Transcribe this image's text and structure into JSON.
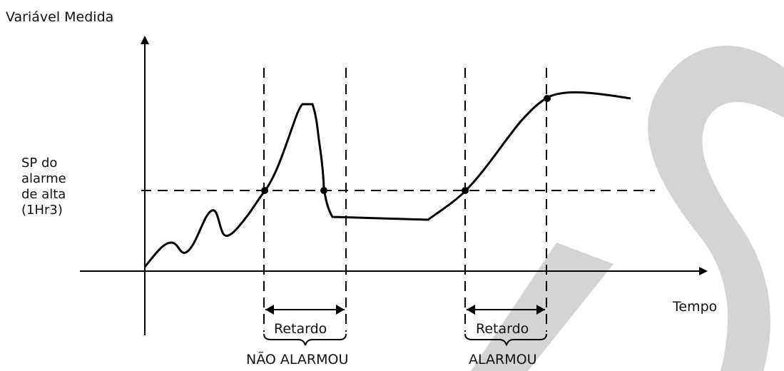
{
  "diagram": {
    "y_axis_label": "Variável Medida",
    "x_axis_label": "Tempo",
    "setpoint_label_lines": [
      "SP do",
      "alarme",
      "de alta",
      "(1Hr3)"
    ],
    "delay_labels": [
      "Retardo",
      "Retardo"
    ],
    "outcome_labels": [
      "NÃO ALARMOU",
      "ALARMOU"
    ],
    "colors": {
      "ink": "#000000",
      "watermark": "#d4d4d4",
      "background": "#ffffff"
    }
  }
}
